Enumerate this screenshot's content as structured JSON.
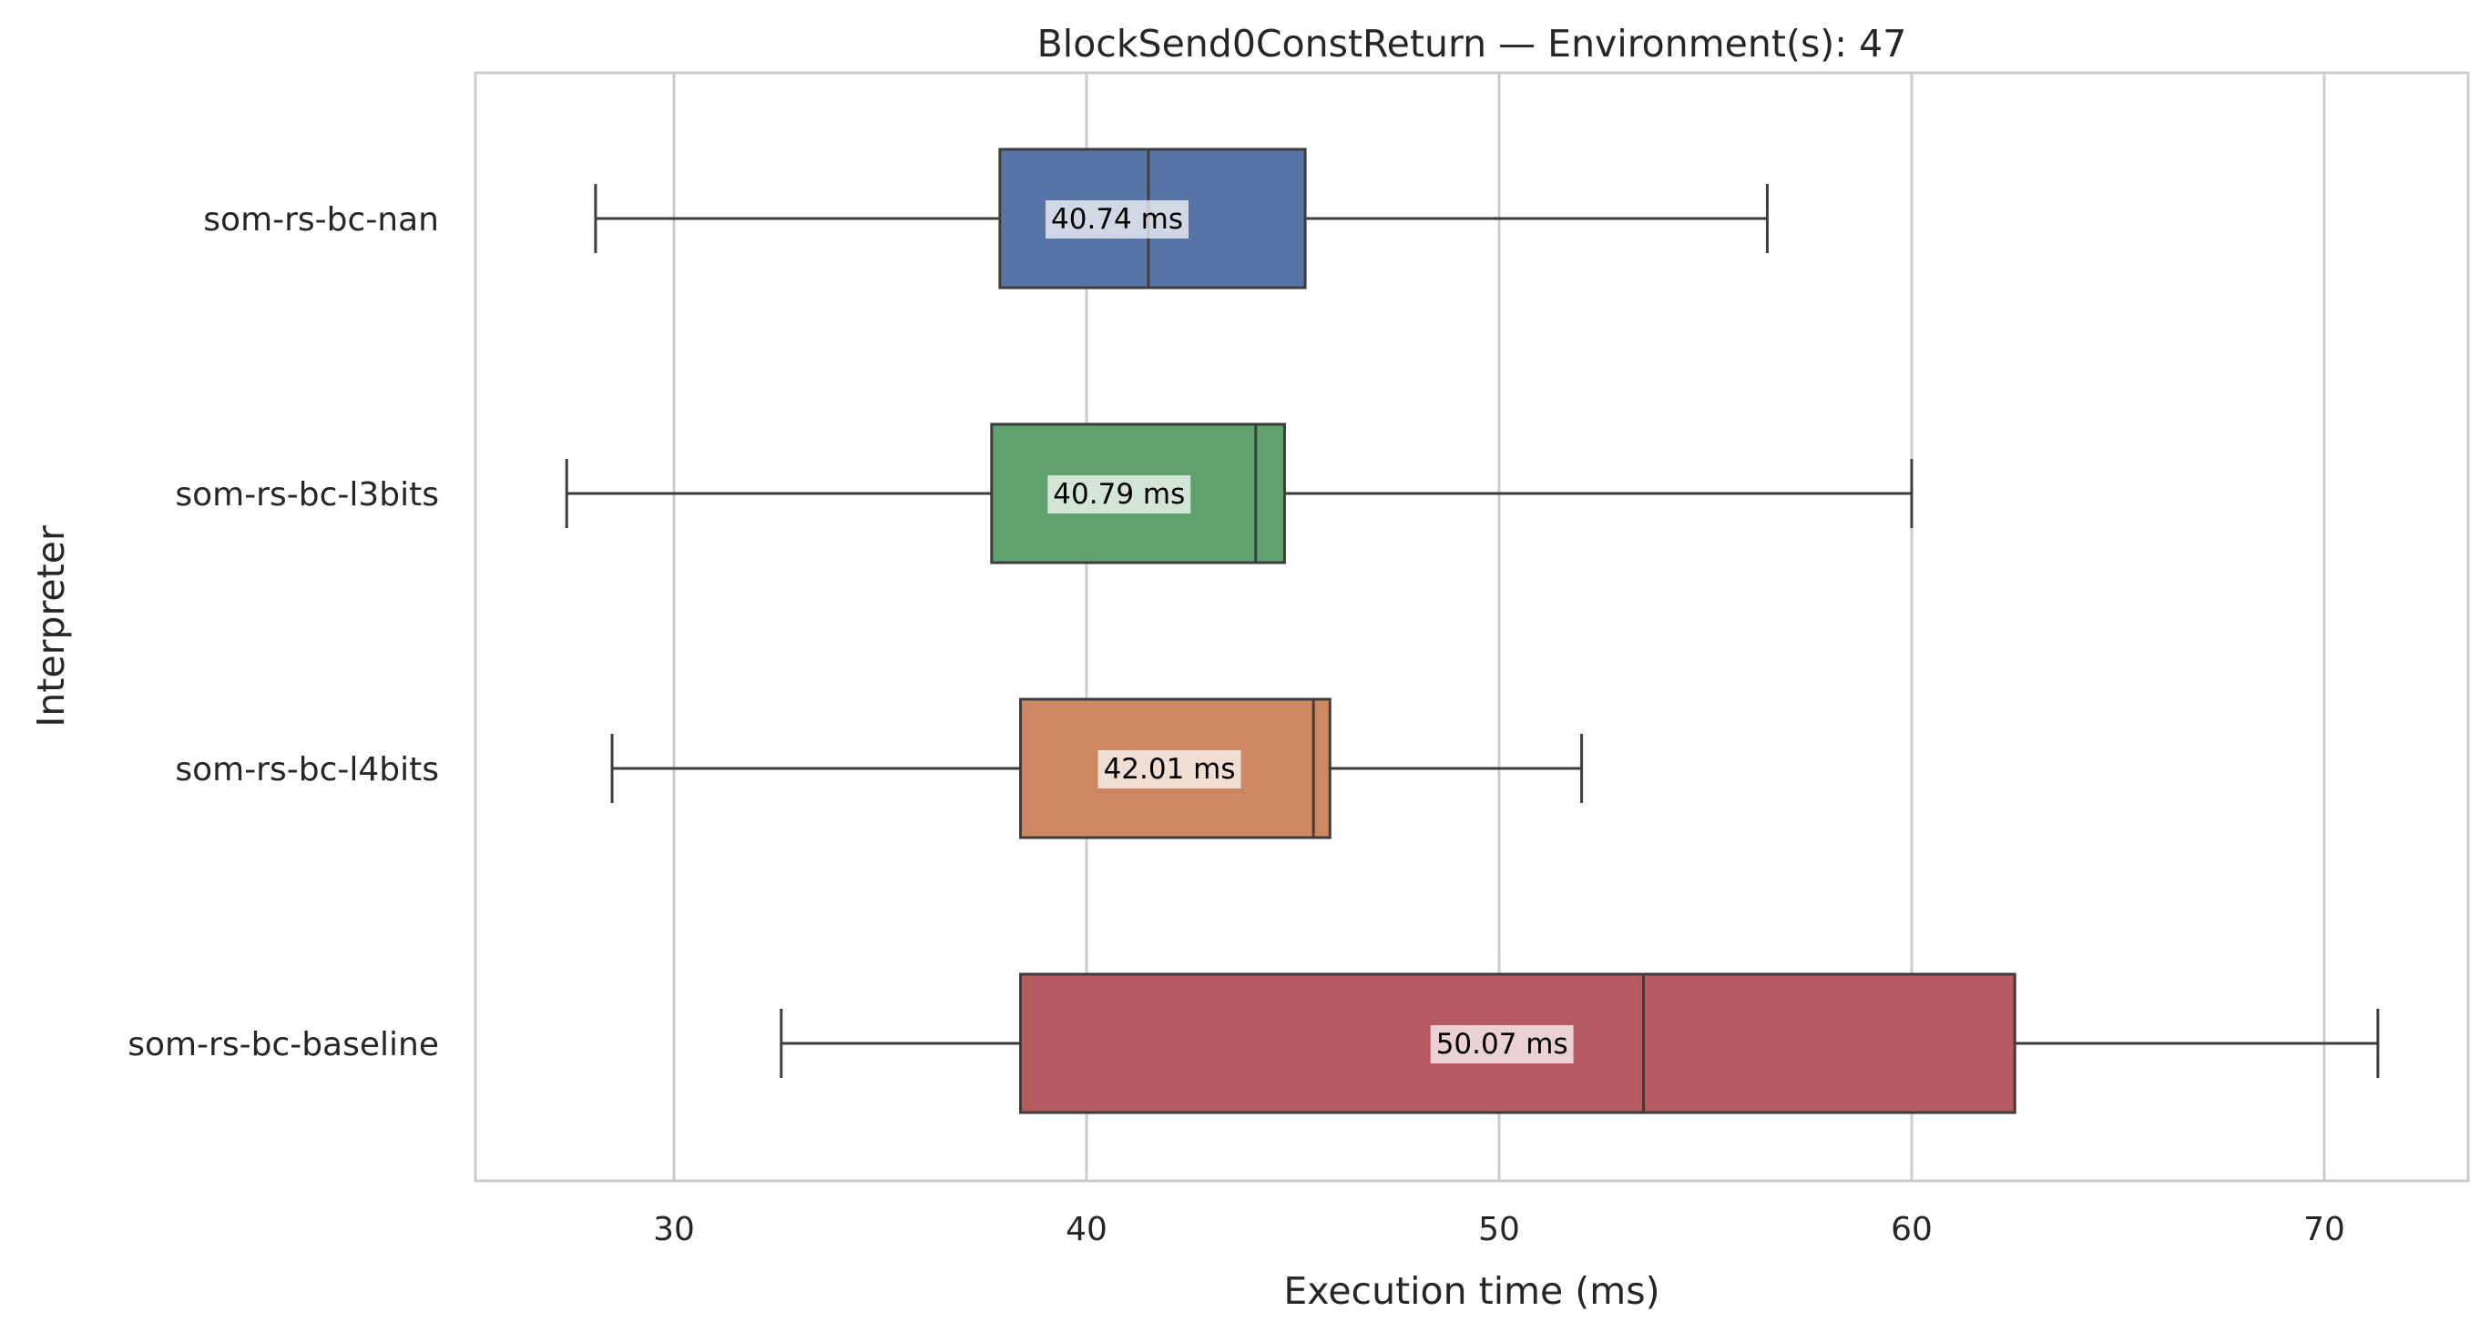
{
  "chart_data": {
    "type": "boxplot",
    "orientation": "horizontal",
    "title": "BlockSend0ConstReturn — Environment(s): 47",
    "xlabel": "Execution time (ms)",
    "ylabel": "Interpreter",
    "xlim": [
      25.2,
      73.4
    ],
    "xticks": [
      30,
      40,
      50,
      60,
      70
    ],
    "xtick_labels": [
      "30",
      "40",
      "50",
      "60",
      "70"
    ],
    "grid": "vertical",
    "categories": [
      "som-rs-bc-nan",
      "som-rs-bc-l3bits",
      "som-rs-bc-l4bits",
      "som-rs-bc-baseline"
    ],
    "series": [
      {
        "whisker_low": 28.1,
        "q1": 37.9,
        "median": 41.5,
        "q3": 45.3,
        "whisker_high": 56.5,
        "mean_label": "40.74 ms",
        "color": "#5874a6"
      },
      {
        "whisker_low": 27.4,
        "q1": 37.7,
        "median": 44.1,
        "q3": 44.8,
        "whisker_high": 60.0,
        "mean_label": "40.79 ms",
        "color": "#5fa26d"
      },
      {
        "whisker_low": 28.5,
        "q1": 38.4,
        "median": 45.5,
        "q3": 45.9,
        "whisker_high": 52.0,
        "mean_label": "42.01 ms",
        "color": "#cc8863"
      },
      {
        "whisker_low": 32.6,
        "q1": 38.4,
        "median": 53.5,
        "q3": 62.5,
        "whisker_high": 71.3,
        "mean_label": "50.07 ms",
        "color": "#b45b60"
      }
    ]
  }
}
